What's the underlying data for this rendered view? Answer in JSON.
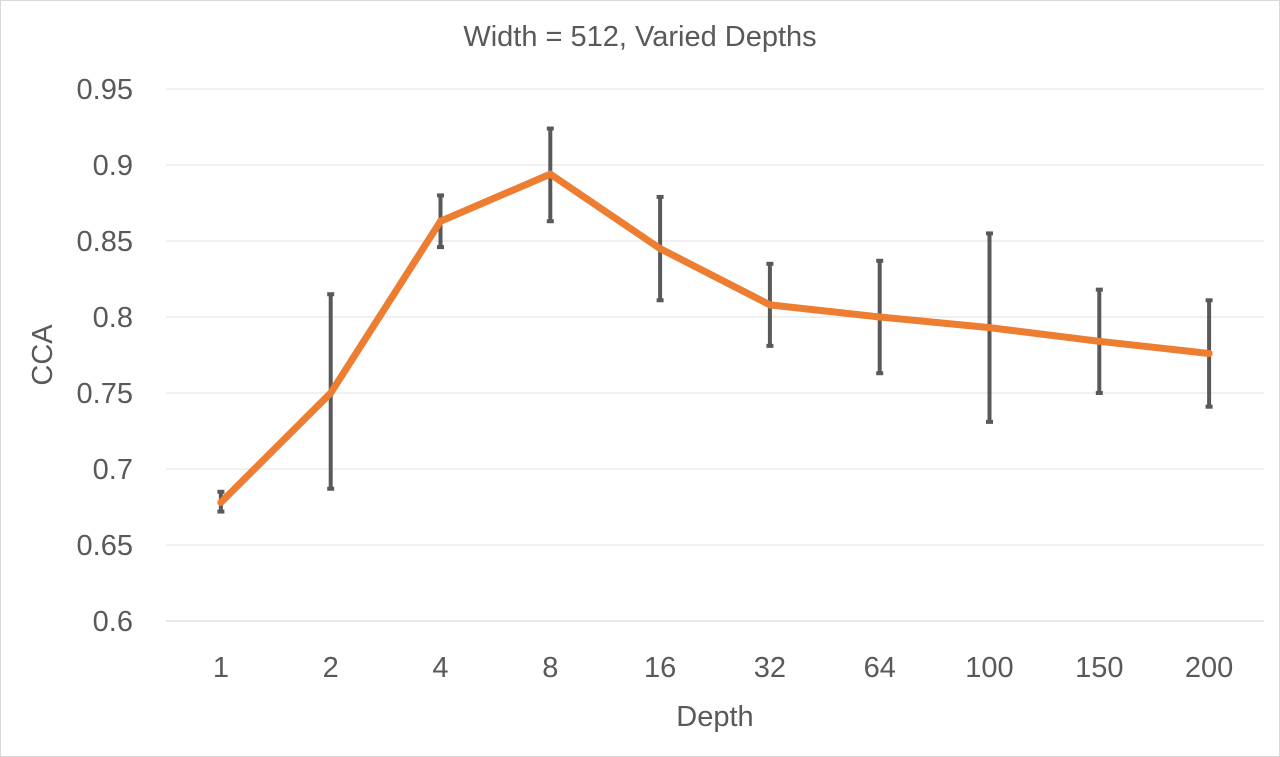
{
  "chart_data": {
    "type": "line",
    "title": "Width = 512, Varied Depths",
    "xlabel": "Depth",
    "ylabel": "CCA",
    "categories": [
      "1",
      "2",
      "4",
      "8",
      "16",
      "32",
      "64",
      "100",
      "150",
      "200"
    ],
    "ylim": [
      0.6,
      0.95
    ],
    "yticks": [
      "0.6",
      "0.65",
      "0.7",
      "0.75",
      "0.8",
      "0.85",
      "0.9",
      "0.95"
    ],
    "grid": true,
    "legend": "none",
    "series": [
      {
        "values": [
          0.678,
          0.75,
          0.863,
          0.894,
          0.845,
          0.808,
          0.8,
          0.793,
          0.784,
          0.776
        ],
        "error_low": [
          0.672,
          0.687,
          0.846,
          0.863,
          0.811,
          0.781,
          0.763,
          0.731,
          0.75,
          0.741
        ],
        "error_high": [
          0.685,
          0.815,
          0.88,
          0.924,
          0.879,
          0.835,
          0.837,
          0.855,
          0.818,
          0.811
        ],
        "color": "#ED7D31",
        "error_color": "#595959"
      }
    ]
  }
}
